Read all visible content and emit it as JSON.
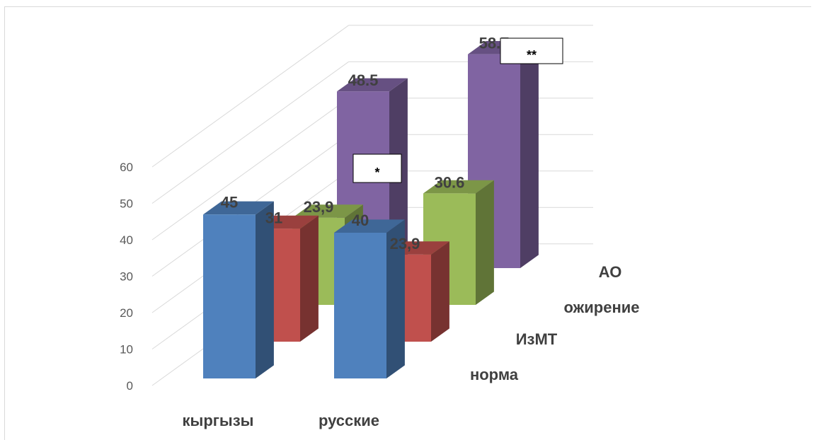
{
  "chart_data": {
    "type": "bar",
    "subtype": "3d-clustered",
    "title": "",
    "xlabel": "",
    "ylabel": "",
    "ylim": [
      0,
      60
    ],
    "yticks": [
      "0",
      "10",
      "20",
      "30",
      "40",
      "50",
      "60"
    ],
    "categories": [
      "кыргызы",
      "русские"
    ],
    "series": [
      {
        "name": "норма",
        "color": "#4f81bd",
        "values": [
          45,
          40
        ],
        "labels": [
          "45",
          "40"
        ]
      },
      {
        "name": "ИзМТ",
        "color": "#c0504d",
        "values": [
          31,
          23.9
        ],
        "labels": [
          "31",
          "23,9"
        ]
      },
      {
        "name": "ожирение",
        "color": "#9bbb59",
        "values": [
          23.9,
          30.6
        ],
        "labels": [
          "23,9",
          "30.6"
        ]
      },
      {
        "name": "АО",
        "color": "#8064a2",
        "values": [
          48.5,
          58.7
        ],
        "labels": [
          "48.5",
          "58.7"
        ]
      }
    ],
    "annotations": [
      {
        "text": "*",
        "series": "АО",
        "category": "кыргызы"
      },
      {
        "text": "**",
        "series": "АО",
        "category": "русские"
      }
    ],
    "grid": true,
    "legend": "depth-axis-right"
  }
}
